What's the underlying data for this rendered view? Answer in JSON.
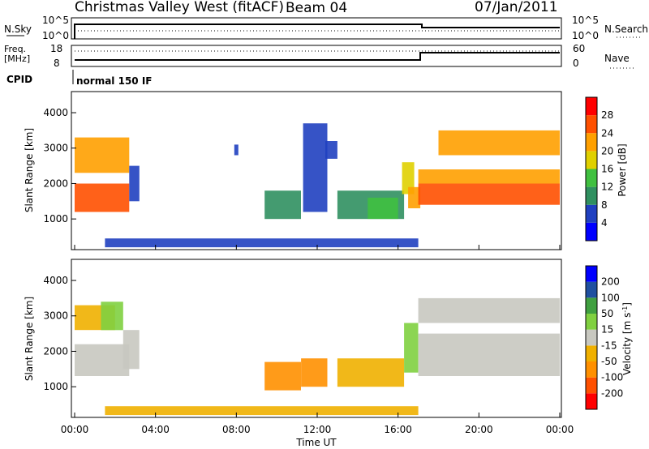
{
  "header": {
    "station": "Christmas Valley West (fitACF)",
    "beam": "Beam 04",
    "date": "07/Jan/2011"
  },
  "nsky_panel": {
    "left_label": "N.Sky",
    "right_label": "N.Search",
    "left_ticks": [
      "10^5",
      "10^0"
    ],
    "right_ticks": [
      "10^5",
      "10^0"
    ]
  },
  "freq_panel": {
    "left_label_line1": "Freq.",
    "left_label_line2": "[MHz]",
    "right_label": "Nave",
    "left_ticks": [
      "18",
      "8"
    ],
    "right_ticks": [
      "60",
      "0"
    ]
  },
  "cpid": {
    "label": "CPID",
    "value": "normal 150 IF"
  },
  "colors": {
    "power_scale": [
      "#0000ff",
      "#2040c0",
      "#309060",
      "#40c040",
      "#e0d000",
      "#ffa000",
      "#ff5000",
      "#ff0000"
    ],
    "velocity_scale": [
      "#ff0000",
      "#ff5000",
      "#ff9000",
      "#f0b000",
      "#c8c8c0",
      "#80d040",
      "#40a040",
      "#2050a0",
      "#0000ff"
    ],
    "ground_scatter": "#c8c8c0"
  },
  "chart_data": [
    {
      "type": "heatmap",
      "title": "Power",
      "ylabel": "Slant Range [km]",
      "yticks": [
        "1000",
        "2000",
        "3000",
        "4000"
      ],
      "ylim": [
        180,
        4550
      ],
      "xlim": [
        0,
        24
      ],
      "colorbar_label": "Power [dB]",
      "colorbar_ticks": [
        "4",
        "8",
        "12",
        "16",
        "20",
        "24",
        "28"
      ],
      "colorbar_range": [
        0,
        32
      ],
      "regions": [
        {
          "t0": 0.0,
          "t1": 2.7,
          "r0": 1200,
          "r1": 2000,
          "value": 27
        },
        {
          "t0": 0.0,
          "t1": 2.7,
          "r0": 2300,
          "r1": 3300,
          "value": 21
        },
        {
          "t0": 2.7,
          "t1": 3.2,
          "r0": 1500,
          "r1": 2500,
          "value": 6
        },
        {
          "t0": 7.9,
          "t1": 8.1,
          "r0": 2800,
          "r1": 3100,
          "value": 5
        },
        {
          "t0": 9.4,
          "t1": 11.2,
          "r0": 1000,
          "r1": 1800,
          "value": 8
        },
        {
          "t0": 11.3,
          "t1": 12.5,
          "r0": 1200,
          "r1": 3700,
          "value": 5
        },
        {
          "t0": 12.4,
          "t1": 13.0,
          "r0": 2700,
          "r1": 3200,
          "value": 6
        },
        {
          "t0": 13.0,
          "t1": 16.3,
          "r0": 1000,
          "r1": 1800,
          "value": 8
        },
        {
          "t0": 14.5,
          "t1": 16.0,
          "r0": 1000,
          "r1": 1600,
          "value": 13
        },
        {
          "t0": 16.2,
          "t1": 16.8,
          "r0": 1700,
          "r1": 2600,
          "value": 18
        },
        {
          "t0": 16.5,
          "t1": 17.1,
          "r0": 1300,
          "r1": 1900,
          "value": 22
        },
        {
          "t0": 17.0,
          "t1": 24.0,
          "r0": 1400,
          "r1": 2000,
          "value": 27
        },
        {
          "t0": 17.0,
          "t1": 24.0,
          "r0": 2000,
          "r1": 2400,
          "value": 23
        },
        {
          "t0": 18.0,
          "t1": 24.0,
          "r0": 2800,
          "r1": 3500,
          "value": 20
        },
        {
          "t0": 1.5,
          "t1": 17.0,
          "r0": 200,
          "r1": 450,
          "value": 6
        }
      ]
    },
    {
      "type": "heatmap",
      "title": "Velocity",
      "ylabel": "Slant Range [km]",
      "yticks": [
        "1000",
        "2000",
        "3000",
        "4000"
      ],
      "ylim": [
        180,
        4550
      ],
      "xlim": [
        0,
        24
      ],
      "colorbar_label": "Velocity [m s^-1]",
      "colorbar_ticks": [
        "200",
        "100",
        "50",
        "15",
        "-15",
        "-50",
        "-100",
        "-200"
      ],
      "regions": [
        {
          "t0": 0.0,
          "t1": 2.7,
          "r0": 1300,
          "r1": 2200,
          "value": 0
        },
        {
          "t0": 0.0,
          "t1": 2.0,
          "r0": 2600,
          "r1": 3300,
          "value": -30
        },
        {
          "t0": 1.3,
          "t1": 2.4,
          "r0": 2600,
          "r1": 3400,
          "value": 40
        },
        {
          "t0": 2.4,
          "t1": 3.2,
          "r0": 1500,
          "r1": 2600,
          "value": 0
        },
        {
          "t0": 9.4,
          "t1": 11.2,
          "r0": 900,
          "r1": 1700,
          "value": -60
        },
        {
          "t0": 11.2,
          "t1": 12.5,
          "r0": 1000,
          "r1": 1800,
          "value": -60
        },
        {
          "t0": 13.0,
          "t1": 16.3,
          "r0": 1000,
          "r1": 1800,
          "value": -30
        },
        {
          "t0": 16.3,
          "t1": 17.0,
          "r0": 1400,
          "r1": 2800,
          "value": 40
        },
        {
          "t0": 17.0,
          "t1": 24.0,
          "r0": 1300,
          "r1": 2500,
          "value": 0
        },
        {
          "t0": 17.0,
          "t1": 24.0,
          "r0": 2800,
          "r1": 3500,
          "value": 0
        },
        {
          "t0": 1.5,
          "t1": 17.0,
          "r0": 200,
          "r1": 450,
          "value": -40
        }
      ],
      "xlabel": "Time UT",
      "xticks": [
        "00:00",
        "04:00",
        "08:00",
        "12:00",
        "16:00",
        "20:00",
        "00:00"
      ]
    }
  ]
}
